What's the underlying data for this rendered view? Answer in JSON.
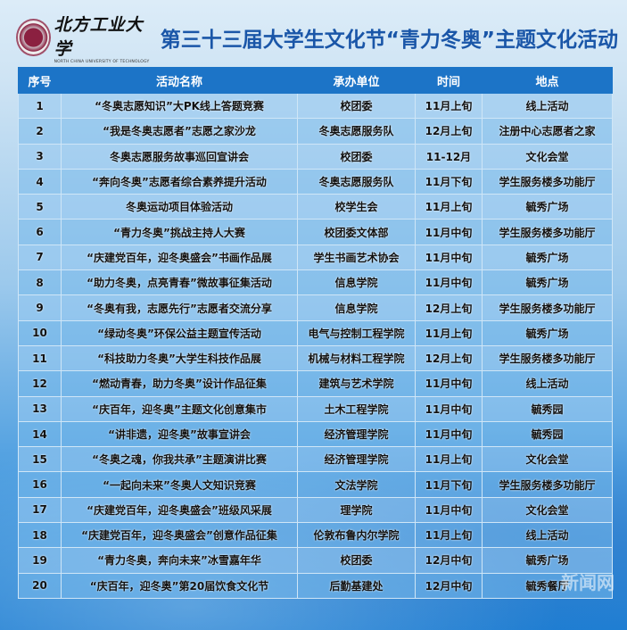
{
  "header": {
    "university_cn": "北方工业大学",
    "university_en": "NORTH CHINA UNIVERSITY OF TECHNOLOGY",
    "title": "第三十三届大学生文化节“青力冬奥”主题文化活动"
  },
  "table": {
    "columns": [
      "序号",
      "活动名称",
      "承办单位",
      "时间",
      "地点"
    ],
    "rows": [
      [
        "1",
        "“冬奥志愿知识”大PK线上答题竞赛",
        "校团委",
        "11月上旬",
        "线上活动"
      ],
      [
        "2",
        "“我是冬奥志愿者”志愿之家沙龙",
        "冬奥志愿服务队",
        "12月上旬",
        "注册中心志愿者之家"
      ],
      [
        "3",
        "冬奥志愿服务故事巡回宣讲会",
        "校团委",
        "11-12月",
        "文化会堂"
      ],
      [
        "4",
        "“奔向冬奥”志愿者综合素养提升活动",
        "冬奥志愿服务队",
        "11月下旬",
        "学生服务楼多功能厅"
      ],
      [
        "5",
        "冬奥运动项目体验活动",
        "校学生会",
        "11月上旬",
        "毓秀广场"
      ],
      [
        "6",
        "“青力冬奥”挑战主持人大赛",
        "校团委文体部",
        "11月中旬",
        "学生服务楼多功能厅"
      ],
      [
        "7",
        "“庆建党百年，迎冬奥盛会”书画作品展",
        "学生书画艺术协会",
        "11月中旬",
        "毓秀广场"
      ],
      [
        "8",
        "“助力冬奥，点亮青春”微故事征集活动",
        "信息学院",
        "11月中旬",
        "毓秀广场"
      ],
      [
        "9",
        "“冬奥有我，志愿先行”志愿者交流分享",
        "信息学院",
        "12月上旬",
        "学生服务楼多功能厅"
      ],
      [
        "10",
        "“绿动冬奥”环保公益主题宣传活动",
        "电气与控制工程学院",
        "11月上旬",
        "毓秀广场"
      ],
      [
        "11",
        "“科技助力冬奥”大学生科技作品展",
        "机械与材料工程学院",
        "12月上旬",
        "学生服务楼多功能厅"
      ],
      [
        "12",
        "“燃动青春，助力冬奥”设计作品征集",
        "建筑与艺术学院",
        "11月中旬",
        "线上活动"
      ],
      [
        "13",
        "“庆百年，迎冬奥”主题文化创意集市",
        "土木工程学院",
        "11月中旬",
        "毓秀园"
      ],
      [
        "14",
        "“讲非遗，迎冬奥”故事宣讲会",
        "经济管理学院",
        "11月中旬",
        "毓秀园"
      ],
      [
        "15",
        "“冬奥之魂，你我共承”主题演讲比赛",
        "经济管理学院",
        "11月上旬",
        "文化会堂"
      ],
      [
        "16",
        "“一起向未来”冬奥人文知识竞赛",
        "文法学院",
        "11月下旬",
        "学生服务楼多功能厅"
      ],
      [
        "17",
        "“庆建党百年，迎冬奥盛会”班级风采展",
        "理学院",
        "11月中旬",
        "文化会堂"
      ],
      [
        "18",
        "“庆建党百年，迎冬奥盛会”创意作品征集",
        "伦敦布鲁内尔学院",
        "11月上旬",
        "线上活动"
      ],
      [
        "19",
        "“青力冬奥，奔向未来”冰雪嘉年华",
        "校团委",
        "12月中旬",
        "毓秀广场"
      ],
      [
        "20",
        "“庆百年，迎冬奥”第20届饮食文化节",
        "后勤基建处",
        "12月中旬",
        "毓秀餐厅"
      ]
    ]
  },
  "watermark": "新闻网",
  "colors": {
    "title": "#1a56a8",
    "header_bg": "#1c74c7"
  }
}
